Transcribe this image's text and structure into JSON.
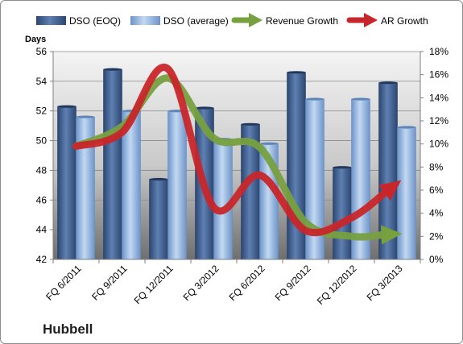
{
  "chart_data": {
    "type": "bar",
    "company": "Hubbell",
    "left_axis_title": "Days",
    "categories": [
      "FQ 6/2011",
      "FQ 9/2011",
      "FQ 12/2011",
      "FQ 3/2012",
      "FQ 6/2012",
      "FQ 9/2012",
      "FQ 12/2012",
      "FQ 3/2013"
    ],
    "left_axis": {
      "min": 42,
      "max": 56,
      "ticks": [
        42,
        44,
        46,
        48,
        50,
        52,
        54,
        56
      ]
    },
    "right_axis": {
      "min": 0,
      "max": 18,
      "unit": "%",
      "ticks": [
        0,
        2,
        4,
        6,
        8,
        10,
        12,
        14,
        16,
        18
      ],
      "tick_labels": [
        "0%",
        "2%",
        "4%",
        "6%",
        "8%",
        "10%",
        "12%",
        "14%",
        "16%",
        "18%"
      ]
    },
    "bar_series": [
      {
        "name": "DSO (EOQ)",
        "axis": "left",
        "color": "#4a6b9c",
        "values": [
          52.3,
          54.8,
          47.4,
          52.2,
          51.1,
          54.6,
          48.2,
          53.9
        ]
      },
      {
        "name": "DSO (average)",
        "axis": "left",
        "color": "#8fb2e0",
        "values": [
          51.6,
          52.0,
          52.0,
          50.1,
          49.8,
          52.8,
          52.8,
          50.9
        ]
      }
    ],
    "line_series": [
      {
        "name": "Revenue Growth",
        "axis": "right",
        "color": "#77a03f",
        "values": [
          9.8,
          11.5,
          15.7,
          10.5,
          9.7,
          3.2,
          2.0,
          2.2
        ]
      },
      {
        "name": "AR Growth",
        "axis": "right",
        "color": "#c8262a",
        "values": [
          9.8,
          11.0,
          16.5,
          4.5,
          7.3,
          2.5,
          3.6,
          6.6
        ]
      }
    ],
    "legend_position": "top",
    "grid": true
  }
}
